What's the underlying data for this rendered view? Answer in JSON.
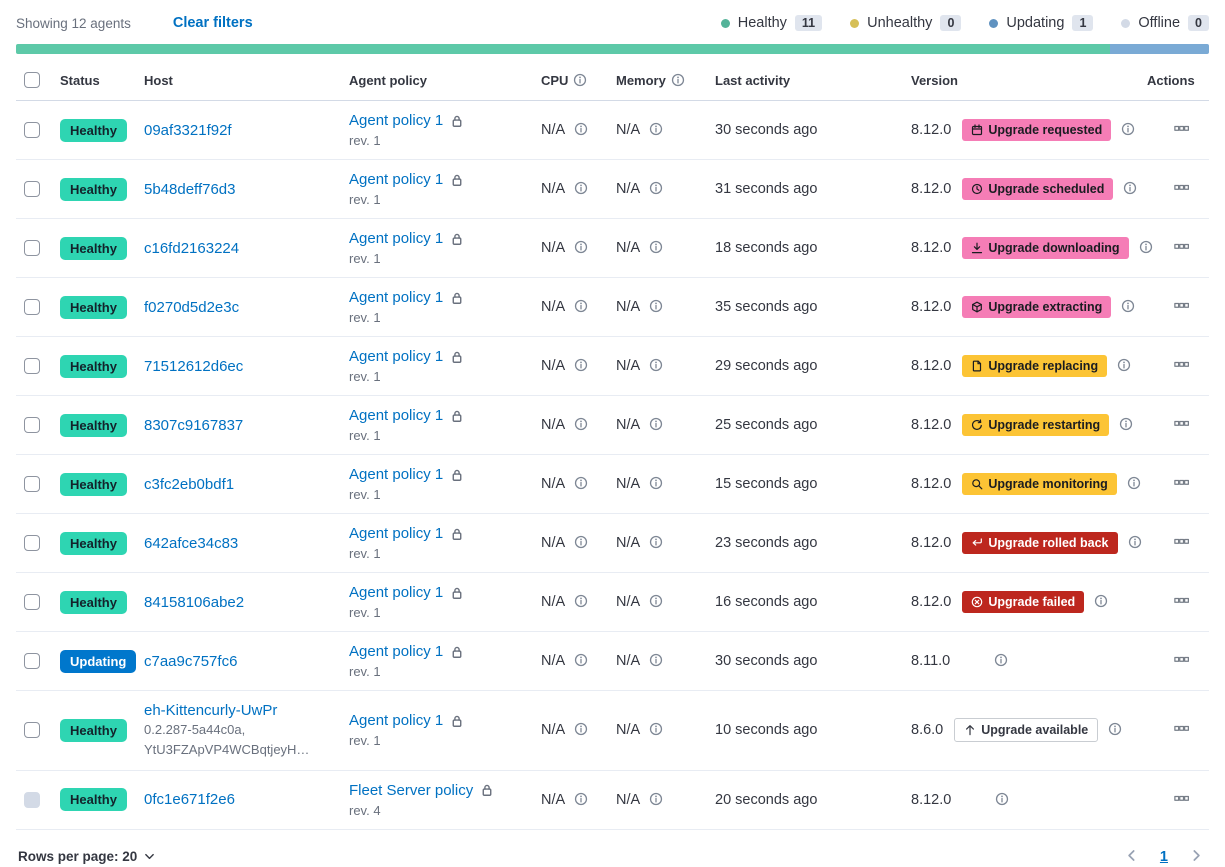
{
  "colors": {
    "healthy-badge": "#2ed5b2",
    "updating-badge": "#0077cc",
    "dot-healthy": "#54b399",
    "dot-unhealthy": "#d6bf57",
    "dot-updating": "#6092c0",
    "dot-offline": "#d3dae6",
    "bar-green": "#5dc9a8",
    "bar-blue": "#7aaad5",
    "badge-pink": "#f57db6",
    "badge-yellow": "#fcc435",
    "badge-red": "#bd271e",
    "badge-outline-border": "#c9cdd2",
    "link": "#0071c2",
    "text": "#343741",
    "subdued": "#69707d",
    "count-bg": "#e0e5ee",
    "row-border": "#e8ecf3",
    "header-border": "#d3dae6",
    "icon-gray": "#7d8694"
  },
  "toolbar": {
    "showing_text": "Showing 12 agents",
    "clear_filters_label": "Clear filters",
    "legend": [
      {
        "label": "Healthy",
        "count": "11",
        "dot": "dot-healthy"
      },
      {
        "label": "Unhealthy",
        "count": "0",
        "dot": "dot-unhealthy"
      },
      {
        "label": "Updating",
        "count": "1",
        "dot": "dot-updating"
      },
      {
        "label": "Offline",
        "count": "0",
        "dot": "dot-offline"
      }
    ],
    "progress_segments": [
      {
        "name": "healthy",
        "pct": 91.7,
        "color_key": "bar-green"
      },
      {
        "name": "updating",
        "pct": 8.3,
        "color_key": "bar-blue"
      }
    ]
  },
  "table": {
    "headers": {
      "status": "Status",
      "host": "Host",
      "policy": "Agent policy",
      "cpu": "CPU",
      "memory": "Memory",
      "activity": "Last activity",
      "version": "Version",
      "actions": "Actions"
    },
    "na": "N/A",
    "rows": [
      {
        "status": {
          "label": "Healthy",
          "variant": "healthy"
        },
        "host": {
          "name": "09af3321f92f",
          "sub": []
        },
        "policy": {
          "name": "Agent policy 1",
          "rev": "rev. 1",
          "locked": false
        },
        "cpu": "N/A",
        "memory": "N/A",
        "activity": "30 seconds ago",
        "version": "8.12.0",
        "upgrade": {
          "label": "Upgrade requested",
          "variant": "pink",
          "icon": "calendar-icon"
        },
        "version_info": true,
        "checkbox_disabled": false
      },
      {
        "status": {
          "label": "Healthy",
          "variant": "healthy"
        },
        "host": {
          "name": "5b48deff76d3",
          "sub": []
        },
        "policy": {
          "name": "Agent policy 1",
          "rev": "rev. 1",
          "locked": false
        },
        "cpu": "N/A",
        "memory": "N/A",
        "activity": "31 seconds ago",
        "version": "8.12.0",
        "upgrade": {
          "label": "Upgrade scheduled",
          "variant": "pink",
          "icon": "clock-icon"
        },
        "version_info": true,
        "checkbox_disabled": false
      },
      {
        "status": {
          "label": "Healthy",
          "variant": "healthy"
        },
        "host": {
          "name": "c16fd2163224",
          "sub": []
        },
        "policy": {
          "name": "Agent policy 1",
          "rev": "rev. 1",
          "locked": false
        },
        "cpu": "N/A",
        "memory": "N/A",
        "activity": "18 seconds ago",
        "version": "8.12.0",
        "upgrade": {
          "label": "Upgrade downloading",
          "variant": "pink",
          "icon": "download-icon"
        },
        "version_info": true,
        "checkbox_disabled": false
      },
      {
        "status": {
          "label": "Healthy",
          "variant": "healthy"
        },
        "host": {
          "name": "f0270d5d2e3c",
          "sub": []
        },
        "policy": {
          "name": "Agent policy 1",
          "rev": "rev. 1",
          "locked": false
        },
        "cpu": "N/A",
        "memory": "N/A",
        "activity": "35 seconds ago",
        "version": "8.12.0",
        "upgrade": {
          "label": "Upgrade extracting",
          "variant": "pink",
          "icon": "package-icon"
        },
        "version_info": true,
        "checkbox_disabled": false
      },
      {
        "status": {
          "label": "Healthy",
          "variant": "healthy"
        },
        "host": {
          "name": "71512612d6ec",
          "sub": []
        },
        "policy": {
          "name": "Agent policy 1",
          "rev": "rev. 1",
          "locked": false
        },
        "cpu": "N/A",
        "memory": "N/A",
        "activity": "29 seconds ago",
        "version": "8.12.0",
        "upgrade": {
          "label": "Upgrade replacing",
          "variant": "yellow",
          "icon": "document-icon"
        },
        "version_info": true,
        "checkbox_disabled": false
      },
      {
        "status": {
          "label": "Healthy",
          "variant": "healthy"
        },
        "host": {
          "name": "8307c9167837",
          "sub": []
        },
        "policy": {
          "name": "Agent policy 1",
          "rev": "rev. 1",
          "locked": false
        },
        "cpu": "N/A",
        "memory": "N/A",
        "activity": "25 seconds ago",
        "version": "8.12.0",
        "upgrade": {
          "label": "Upgrade restarting",
          "variant": "yellow",
          "icon": "refresh-icon"
        },
        "version_info": true,
        "checkbox_disabled": false
      },
      {
        "status": {
          "label": "Healthy",
          "variant": "healthy"
        },
        "host": {
          "name": "c3fc2eb0bdf1",
          "sub": []
        },
        "policy": {
          "name": "Agent policy 1",
          "rev": "rev. 1",
          "locked": false
        },
        "cpu": "N/A",
        "memory": "N/A",
        "activity": "15 seconds ago",
        "version": "8.12.0",
        "upgrade": {
          "label": "Upgrade monitoring",
          "variant": "yellow",
          "icon": "inspect-icon"
        },
        "version_info": true,
        "checkbox_disabled": false
      },
      {
        "status": {
          "label": "Healthy",
          "variant": "healthy"
        },
        "host": {
          "name": "642afce34c83",
          "sub": []
        },
        "policy": {
          "name": "Agent policy 1",
          "rev": "rev. 1",
          "locked": false
        },
        "cpu": "N/A",
        "memory": "N/A",
        "activity": "23 seconds ago",
        "version": "8.12.0",
        "upgrade": {
          "label": "Upgrade rolled back",
          "variant": "red",
          "icon": "return-icon"
        },
        "version_info": true,
        "checkbox_disabled": false
      },
      {
        "status": {
          "label": "Healthy",
          "variant": "healthy"
        },
        "host": {
          "name": "84158106abe2",
          "sub": []
        },
        "policy": {
          "name": "Agent policy 1",
          "rev": "rev. 1",
          "locked": false
        },
        "cpu": "N/A",
        "memory": "N/A",
        "activity": "16 seconds ago",
        "version": "8.12.0",
        "upgrade": {
          "label": "Upgrade failed",
          "variant": "red",
          "icon": "error-icon"
        },
        "version_info": true,
        "checkbox_disabled": false
      },
      {
        "status": {
          "label": "Updating",
          "variant": "updating"
        },
        "host": {
          "name": "c7aa9c757fc6",
          "sub": []
        },
        "policy": {
          "name": "Agent policy 1",
          "rev": "rev. 1",
          "locked": false
        },
        "cpu": "N/A",
        "memory": "N/A",
        "activity": "30 seconds ago",
        "version": "8.11.0",
        "upgrade": null,
        "version_info": true,
        "checkbox_disabled": false
      },
      {
        "status": {
          "label": "Healthy",
          "variant": "healthy"
        },
        "host": {
          "name": "eh-Kittencurly-UwPr",
          "sub": [
            "0.2.287-5a44c0a,",
            "YtU3FZApVP4WCBqtjeyH…"
          ]
        },
        "policy": {
          "name": "Agent policy 1",
          "rev": "rev. 1",
          "locked": false
        },
        "cpu": "N/A",
        "memory": "N/A",
        "activity": "10 seconds ago",
        "version": "8.6.0",
        "upgrade": {
          "label": "Upgrade available",
          "variant": "outline",
          "icon": "arrow-up-icon"
        },
        "version_info": false,
        "checkbox_disabled": false
      },
      {
        "status": {
          "label": "Healthy",
          "variant": "healthy"
        },
        "host": {
          "name": "0fc1e671f2e6",
          "sub": []
        },
        "policy": {
          "name": "Fleet Server policy",
          "rev": "rev. 4",
          "locked": true
        },
        "cpu": "N/A",
        "memory": "N/A",
        "activity": "20 seconds ago",
        "version": "8.12.0",
        "upgrade": null,
        "version_info": false,
        "checkbox_disabled": true
      }
    ]
  },
  "footer": {
    "rows_per_page_label": "Rows per page: 20",
    "current_page": "1"
  }
}
